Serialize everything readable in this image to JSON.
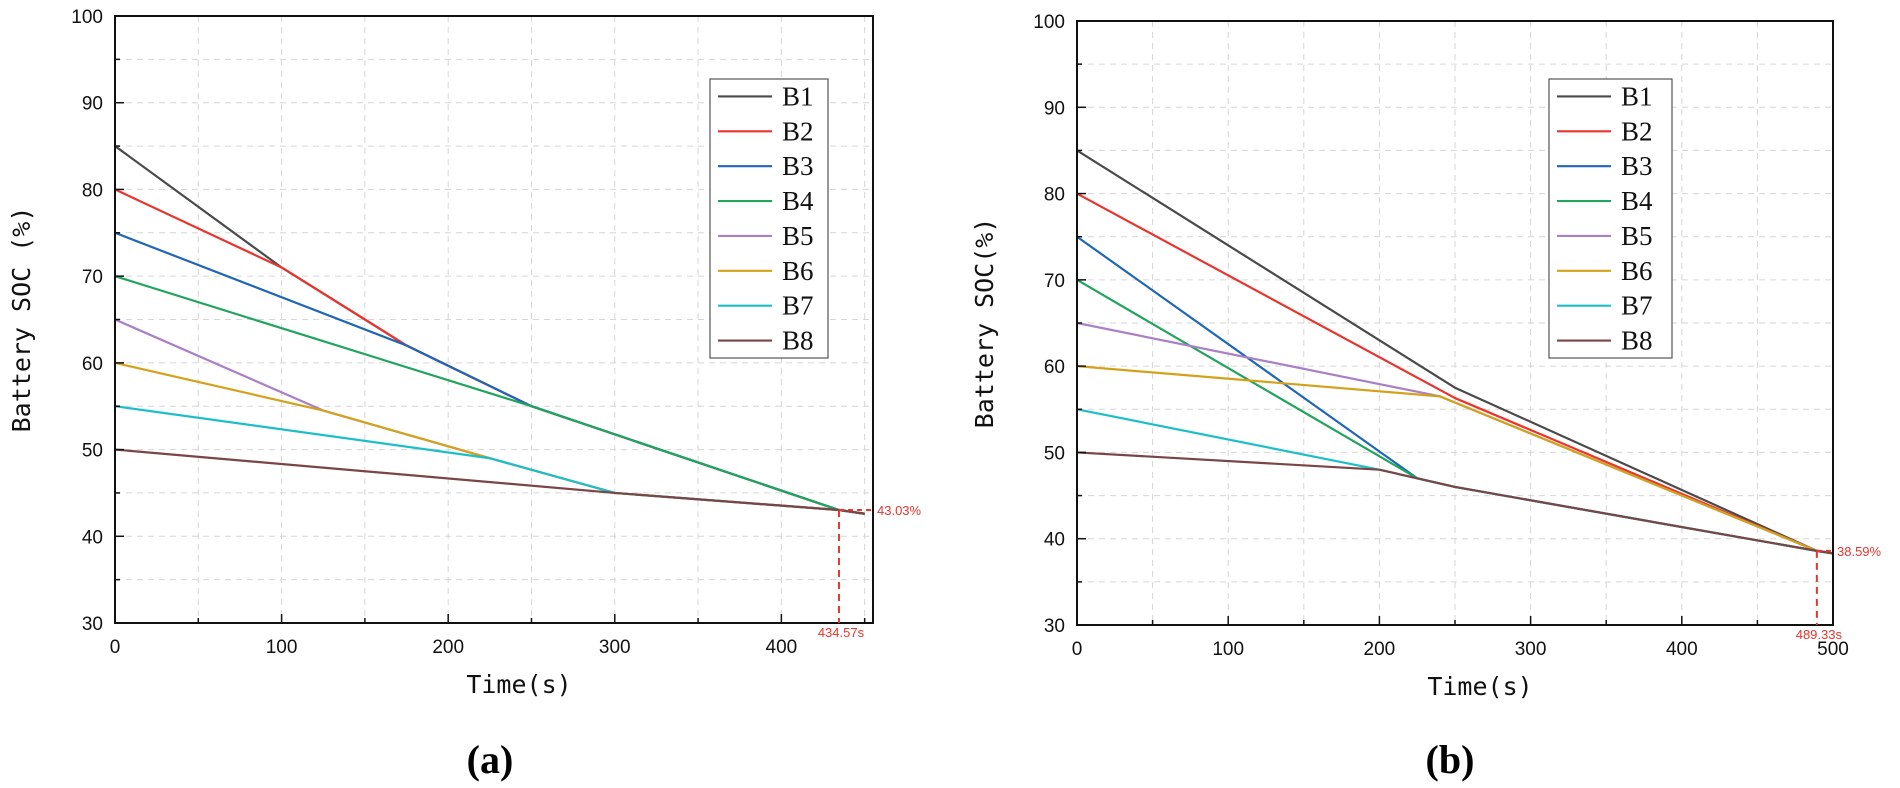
{
  "chart_data": [
    {
      "type": "line",
      "panel": "a",
      "caption": "(a)",
      "xlabel": "Time(s)",
      "ylabel": "Battery SOC (%)",
      "xlim": [
        0,
        455
      ],
      "ylim": [
        30,
        100
      ],
      "xticks": [
        0,
        100,
        200,
        300,
        400
      ],
      "xtick_labels": [
        "0",
        "100",
        "200",
        "300",
        "400"
      ],
      "yticks": [
        30,
        40,
        50,
        60,
        70,
        80,
        90,
        100
      ],
      "ytick_labels": [
        "30",
        "40",
        "50",
        "60",
        "70",
        "80",
        "90",
        "100"
      ],
      "grid": true,
      "legend_position": "top-right",
      "series": [
        {
          "name": "B1",
          "color": "#4a4a4a",
          "x": [
            0,
            100,
            175,
            250,
            434.57,
            450
          ],
          "y": [
            85,
            71,
            62,
            55,
            43.03,
            42.6
          ]
        },
        {
          "name": "B2",
          "color": "#e8352e",
          "x": [
            0,
            100,
            175,
            250,
            434.57,
            450
          ],
          "y": [
            80,
            71,
            62,
            55,
            43.03,
            42.6
          ]
        },
        {
          "name": "B3",
          "color": "#2066b7",
          "x": [
            0,
            175,
            250,
            434.57,
            450
          ],
          "y": [
            75,
            62,
            55,
            43.03,
            42.6
          ]
        },
        {
          "name": "B4",
          "color": "#21a55e",
          "x": [
            0,
            250,
            434.57,
            450
          ],
          "y": [
            70,
            55,
            43.03,
            42.6
          ]
        },
        {
          "name": "B5",
          "color": "#a97fc6",
          "x": [
            0,
            125,
            225,
            300,
            434.57,
            450
          ],
          "y": [
            65,
            54.5,
            49,
            45,
            43.03,
            42.6
          ]
        },
        {
          "name": "B6",
          "color": "#d4a21a",
          "x": [
            0,
            125,
            225,
            300,
            434.57,
            450
          ],
          "y": [
            60,
            54.5,
            49,
            45,
            43.03,
            42.6
          ]
        },
        {
          "name": "B7",
          "color": "#1dbfc7",
          "x": [
            0,
            225,
            300,
            434.57,
            450
          ],
          "y": [
            55,
            49,
            45,
            43.03,
            42.6
          ]
        },
        {
          "name": "B8",
          "color": "#7b4545",
          "x": [
            0,
            300,
            434.57,
            450
          ],
          "y": [
            50,
            45,
            43.03,
            42.6
          ]
        }
      ],
      "annotation": {
        "x": 434.57,
        "y": 43.03,
        "x_label": "434.57s",
        "y_label": "43.03%",
        "color": "#e8352e"
      }
    },
    {
      "type": "line",
      "panel": "b",
      "caption": "(b)",
      "xlabel": "Time(s)",
      "ylabel": "Battery SOC(%)",
      "xlim": [
        0,
        500
      ],
      "ylim": [
        30,
        100
      ],
      "xticks": [
        0,
        100,
        200,
        300,
        400,
        500
      ],
      "xtick_labels": [
        "0",
        "100",
        "200",
        "300",
        "400",
        "500"
      ],
      "yticks": [
        30,
        40,
        50,
        60,
        70,
        80,
        90,
        100
      ],
      "ytick_labels": [
        "30",
        "40",
        "50",
        "60",
        "70",
        "80",
        "90",
        "100"
      ],
      "grid": true,
      "legend_position": "top-right",
      "series": [
        {
          "name": "B1",
          "color": "#4a4a4a",
          "x": [
            0,
            250,
            489.33,
            500
          ],
          "y": [
            85,
            57.5,
            38.59,
            38.3
          ]
        },
        {
          "name": "B2",
          "color": "#e8352e",
          "x": [
            0,
            250,
            489.33,
            500
          ],
          "y": [
            80,
            56.3,
            38.59,
            38.3
          ]
        },
        {
          "name": "B3",
          "color": "#2066b7",
          "x": [
            0,
            225,
            250,
            489.33,
            500
          ],
          "y": [
            75,
            47,
            46,
            38.59,
            38.3
          ]
        },
        {
          "name": "B4",
          "color": "#21a55e",
          "x": [
            0,
            225,
            250,
            489.33,
            500
          ],
          "y": [
            70,
            47,
            46,
            38.59,
            38.3
          ]
        },
        {
          "name": "B5",
          "color": "#a97fc6",
          "x": [
            0,
            240,
            489.33,
            500
          ],
          "y": [
            65,
            56.5,
            38.59,
            38.3
          ]
        },
        {
          "name": "B6",
          "color": "#d4a21a",
          "x": [
            0,
            240,
            489.33,
            500
          ],
          "y": [
            60,
            56.5,
            38.59,
            38.3
          ]
        },
        {
          "name": "B7",
          "color": "#1dbfc7",
          "x": [
            0,
            200,
            225,
            250,
            489.33,
            500
          ],
          "y": [
            55,
            48,
            47,
            46,
            38.59,
            38.3
          ]
        },
        {
          "name": "B8",
          "color": "#7b4545",
          "x": [
            0,
            200,
            225,
            250,
            489.33,
            500
          ],
          "y": [
            50,
            48,
            47,
            46,
            38.59,
            38.3
          ]
        }
      ],
      "annotation": {
        "x": 489.33,
        "y": 38.59,
        "x_label": "489.33s",
        "y_label": "38.59%",
        "color": "#e8352e"
      }
    }
  ]
}
